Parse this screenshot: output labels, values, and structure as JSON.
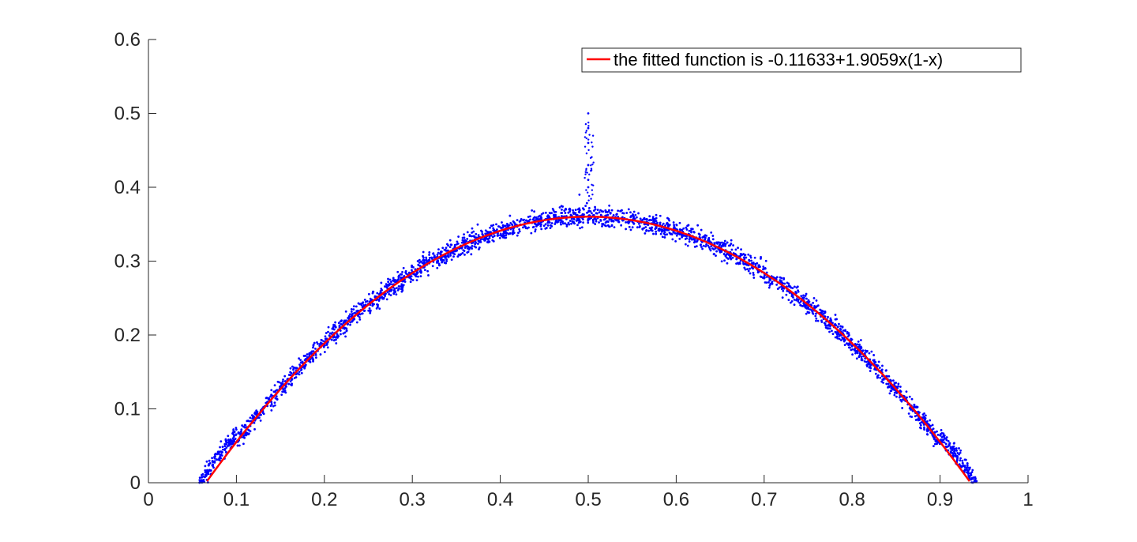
{
  "chart_data": {
    "type": "scatter",
    "title": "",
    "xlabel": "",
    "ylabel": "",
    "xlim": [
      0,
      1
    ],
    "ylim": [
      0,
      0.6
    ],
    "x_ticks": [
      0,
      0.1,
      0.2,
      0.3,
      0.4,
      0.5,
      0.6,
      0.7,
      0.8,
      0.9,
      1
    ],
    "x_tick_labels": [
      "0",
      "0.1",
      "0.2",
      "0.3",
      "0.4",
      "0.5",
      "0.6",
      "0.7",
      "0.8",
      "0.9",
      "1"
    ],
    "y_ticks": [
      0,
      0.1,
      0.2,
      0.3,
      0.4,
      0.5,
      0.6
    ],
    "y_tick_labels": [
      "0",
      "0.1",
      "0.2",
      "0.3",
      "0.4",
      "0.5",
      "0.6"
    ],
    "grid": false,
    "legend_placement": "top-right",
    "series": [
      {
        "kind": "scatter",
        "color": "#0000ff",
        "x_range": [
          0.058,
          0.942
        ],
        "model": "y = -0.11633 + 1.9059x(1-x) with noise",
        "notable_points": [
          {
            "x": 0.5,
            "y": 0.5
          },
          {
            "x": 0.5,
            "y": 0.48
          },
          {
            "x": 0.5,
            "y": 0.46
          },
          {
            "x": 0.5,
            "y": 0.43
          },
          {
            "x": 0.5,
            "y": 0.41
          },
          {
            "x": 0.5,
            "y": 0.4
          },
          {
            "x": 0.49,
            "y": 0.39
          }
        ]
      },
      {
        "kind": "line",
        "name": "the fitted function is -0.11633+1.9059x(1-x)",
        "color": "#ff0000",
        "coefficients": {
          "a": -0.11633,
          "b": 1.9059
        },
        "x_range": [
          0.0665,
          0.9335
        ]
      }
    ]
  }
}
